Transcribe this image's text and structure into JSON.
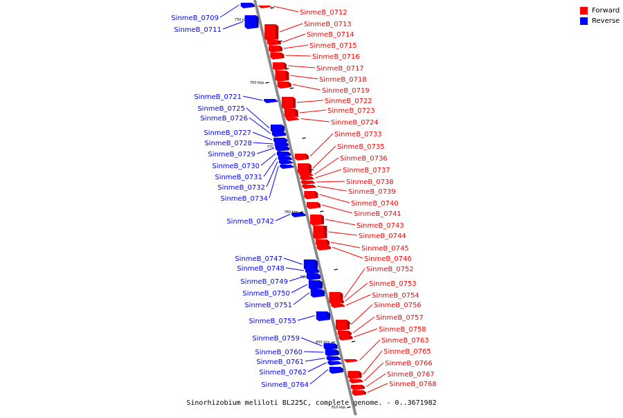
{
  "caption": "Sinorhizobium meliloti BL225C, complete genome. - 0..3671982",
  "legend": {
    "forward_label": "Forward",
    "reverse_label": "Reverse",
    "forward_color": "#ff0000",
    "reverse_color": "#0000ff"
  },
  "scale_labels": [
    "750 kbp",
    "760 kbp",
    "770 kbp",
    "780 kbp",
    "790 kbp",
    "800 kbp",
    "810 kbp"
  ],
  "forward_genes": [
    "SinmeB_0712",
    "SinmeB_0713",
    "SinmeB_0714",
    "SinmeB_0715",
    "SinmeB_0716",
    "SinmeB_0717",
    "SinmeB_0718",
    "SinmeB_0719",
    "SinmeB_0722",
    "SinmeB_0723",
    "SinmeB_0724",
    "SinmeB_0733",
    "SinmeB_0735",
    "SinmeB_0736",
    "SinmeB_0737",
    "SinmeB_0738",
    "SinmeB_0739",
    "SinmeB_0740",
    "SinmeB_0741",
    "SinmeB_0743",
    "SinmeB_0744",
    "SinmeB_0745",
    "SinmeB_0746",
    "SinmeB_0752",
    "SinmeB_0753",
    "SinmeB_0754",
    "SinmeB_0756",
    "SinmeB_0757",
    "SinmeB_0758",
    "SinmeB_0763",
    "SinmeB_0765",
    "SinmeB_0766",
    "SinmeB_0767",
    "SinmeB_0768"
  ],
  "reverse_genes": [
    "SinmeB_0709",
    "SinmeB_0711",
    "SinmeB_0721",
    "SinmeB_0725",
    "SinmeB_0726",
    "SinmeB_0727",
    "SinmeB_0728",
    "SinmeB_0729",
    "SinmeB_0730",
    "SinmeB_0731",
    "SinmeB_0732",
    "SinmeB_0734",
    "SinmeB_0742",
    "SinmeB_0747",
    "SinmeB_0748",
    "SinmeB_0749",
    "SinmeB_0750",
    "SinmeB_0751",
    "SinmeB_0755",
    "SinmeB_0759",
    "SinmeB_0760",
    "SinmeB_0761",
    "SinmeB_0762",
    "SinmeB_0764"
  ]
}
